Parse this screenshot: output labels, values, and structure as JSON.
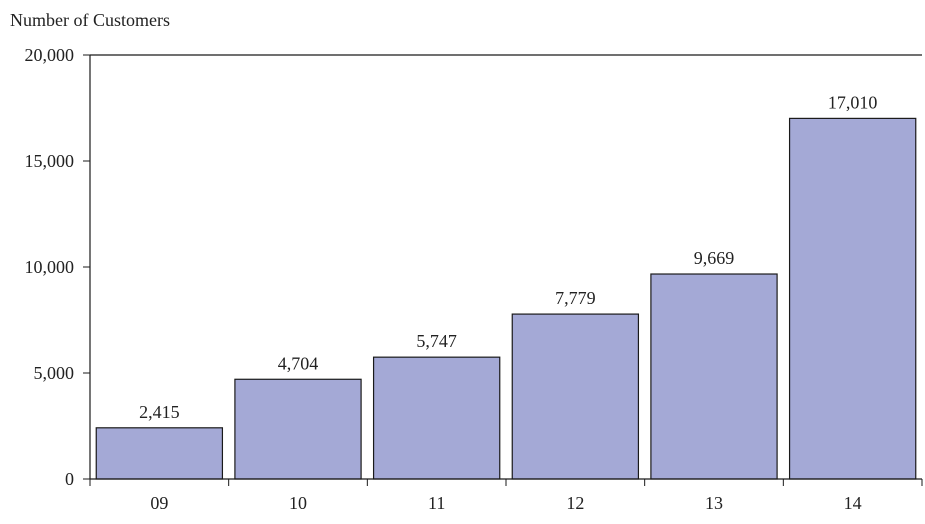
{
  "chart_data": {
    "type": "bar",
    "title": "",
    "ylabel": "Number of Customers",
    "xlabel": "",
    "categories": [
      "09",
      "10",
      "11",
      "12",
      "13",
      "14"
    ],
    "values": [
      2415,
      4704,
      5747,
      7779,
      9669,
      17010
    ],
    "value_labels": [
      "2,415",
      "4,704",
      "5,747",
      "7,779",
      "9,669",
      "17,010"
    ],
    "ylim": [
      0,
      20000
    ],
    "yticks": [
      0,
      5000,
      10000,
      15000,
      20000
    ],
    "ytick_labels": [
      "0",
      "5,000",
      "10,000",
      "15,000",
      "20,000"
    ],
    "grid": false,
    "bar_color": "#a4a9d6",
    "bar_edge_color": "#1a1a1a"
  }
}
